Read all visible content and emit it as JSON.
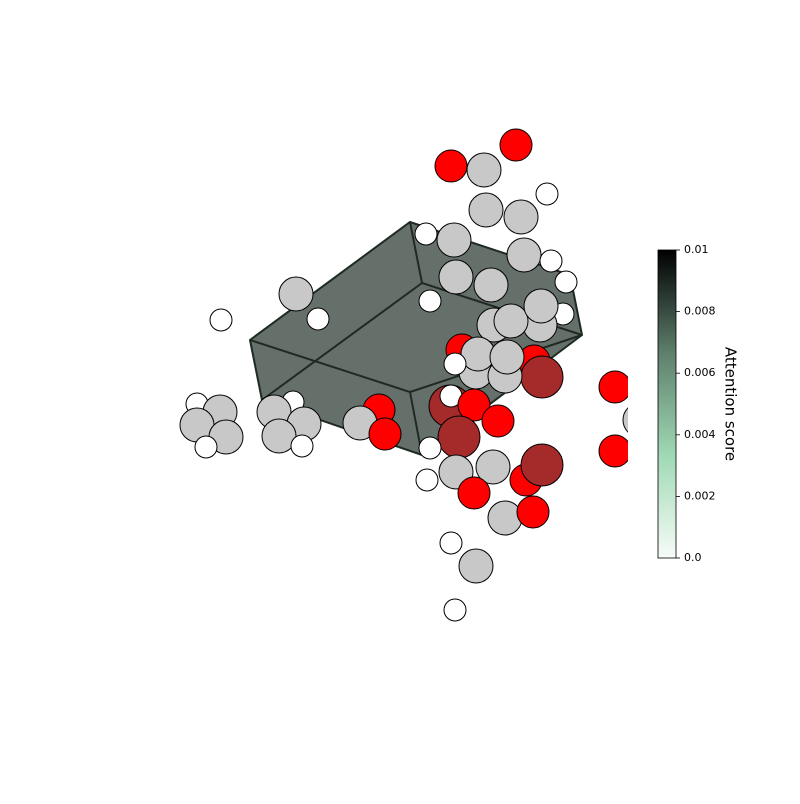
{
  "chart_data": {
    "type": "colorbar",
    "label": "Attention score",
    "ylim": [
      0,
      0.01
    ],
    "yticks": [
      {
        "value": 0,
        "label": "0.0"
      },
      0.002,
      0.004,
      0.006,
      0.008,
      0.01
    ],
    "colormap": [
      "#f7fcf8",
      "#9fd9b4",
      "#5e7f6c",
      "#000000"
    ]
  }
}
